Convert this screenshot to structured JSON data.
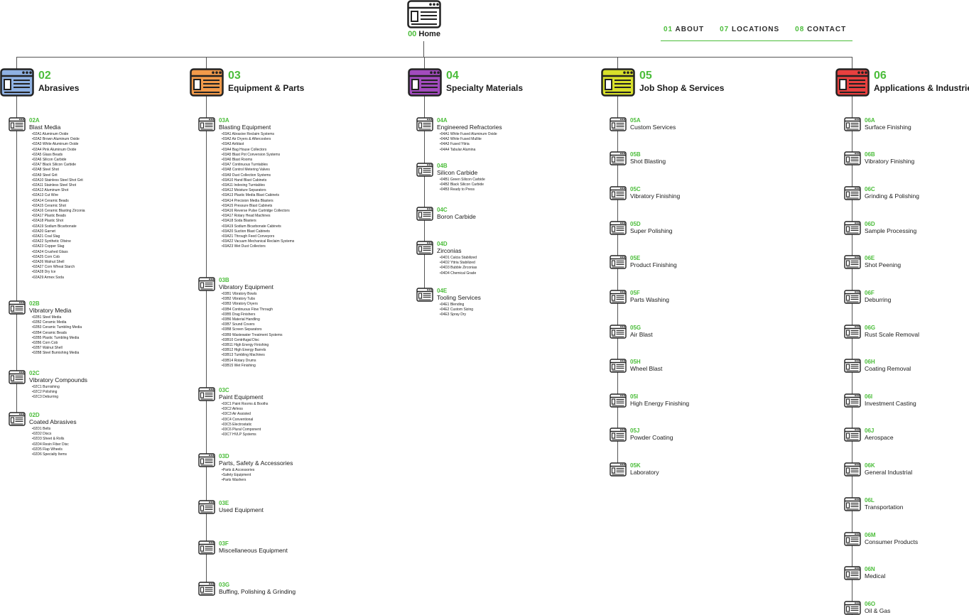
{
  "home": {
    "num": "00",
    "label": "Home"
  },
  "nav": [
    {
      "num": "01",
      "label": "ABOUT"
    },
    {
      "num": "07",
      "label": "LOCATIONS"
    },
    {
      "num": "08",
      "label": "CONTACT"
    }
  ],
  "colors": {
    "accent": "#4bbd3a",
    "abrasives": "#8fb1e3",
    "equipment": "#f29a4a",
    "specialty": "#a24bbd",
    "jobshop": "#d8e02a",
    "applications": "#e8403f"
  },
  "columns": [
    {
      "num": "02",
      "title": "Abrasives",
      "color": "#8fb1e3",
      "nodes": [
        {
          "code": "02A",
          "name": "Blast Media",
          "items": [
            "02A1 Aluminum Oxide",
            "02A2 Brown Aluminum Oxide",
            "02A3 White Aluminum Oxide",
            "02A4 Pink Aluminum Oxide",
            "02A5 Glass Beads",
            "02A6 Silicon Carbide",
            "02A7 Black Silicon Carbide",
            "02A8 Steel Shot",
            "02A9 Steel Grit",
            "02A10 Stainless Steel Shot Grit",
            "02A11 Stainless Steel Shot",
            "02A12 Aluminum Shot",
            "02A13 Cut Wire",
            "02A14 Ceramic Beads",
            "02A15 Ceramic Shot",
            "02A16 Ceramic Blasting Zirconia",
            "02A17 Plastic Beads",
            "02A18 Plastic Shot",
            "02A19 Sodium Bicarbonate",
            "02A20 Garnet",
            "02A21 Coal Slag",
            "02A22 Synthetic Olivine",
            "02A23 Copper Slag",
            "02A24 Crushed Glass",
            "02A25 Corn Cob",
            "02A26 Walnut Shell",
            "02A27 Corn Wheat Starch",
            "02A28 Dry Ice",
            "02A29 Armex Soda"
          ]
        },
        {
          "code": "02B",
          "name": "Vibratory Media",
          "items": [
            "02B1 Steel Media",
            "02B2 Ceramic Media",
            "02B3 Ceramic Tumbling Media",
            "02B4 Ceramic Beads",
            "02B5 Plastic Tumbling Media",
            "02B6 Corn Cob",
            "02B7 Walnut Shell",
            "02B8 Steel Burnishing Media"
          ]
        },
        {
          "code": "02C",
          "name": "Vibratory Compounds",
          "items": [
            "02C1 Burnishing",
            "02C2 Polishing",
            "02C3 Deburring"
          ]
        },
        {
          "code": "02D",
          "name": "Coated Abrasives",
          "items": [
            "02D1 Belts",
            "02D2 Discs",
            "02D3 Sheet & Rolls",
            "02D4 Resin Fiber Disc",
            "02D5 Flap Wheels",
            "02D6 Specialty Items"
          ]
        }
      ]
    },
    {
      "num": "03",
      "title": "Equipment & Parts",
      "color": "#f29a4a",
      "nodes": [
        {
          "code": "03A",
          "name": "Blasting Equipment",
          "items": [
            "03A1 Abrasive Reclaim Systems",
            "03A2 Air Dryers & Aftercoolers",
            "03A3 Airblast",
            "03A4 Bag House Collectors",
            "03A5 Blast Pot Conversion Systems",
            "03A6 Blast Rooms",
            "03A7 Continuous Turntables",
            "03A8 Control Metering Valves",
            "03A9 Dust Collection Systems",
            "03A10 Hand Blast Cabinets",
            "03A11 Indexing Turntables",
            "03A12 Moisture Separators",
            "03A13 Plastic Media Blast Cabinets",
            "03A14 Precision Media Blasters",
            "03A15 Pressure Blast Cabinets",
            "03A16 Reverse Pulse Cartridge Collectors",
            "03A17 Rotary Head Machines",
            "03A18 Soda Blasters",
            "03A19 Sodium Bicarbonate Cabinets",
            "03A20 Suction Blast Cabinets",
            "03A21 Through Feed Conveyors",
            "03A22 Vacuum Mechanical Reclaim Systems",
            "03A23 Wet Dust Collectors"
          ]
        },
        {
          "code": "03B",
          "name": "Vibratory Equipment",
          "items": [
            "03B1 Vibratory Bowls",
            "03B2 Vibratory Tubs",
            "03B3 Vibratory Dryers",
            "03B4 Continuous Flow Through",
            "03B5 Drag Finishers",
            "03B6 Material Handling",
            "03B7 Sound Covers",
            "03B8 Screen Separators",
            "03B9 Wastewater Treatment Systems",
            "03B10 Centrifugal Disc",
            "03B11 High Energy Finishing",
            "03B12 High Energy Barrels",
            "03B13 Tumbling Machines",
            "03B14 Rotary Drums",
            "03B15 Wet Finishing"
          ]
        },
        {
          "code": "03C",
          "name": "Paint Equipment",
          "items": [
            "03C1 Paint Rooms & Booths",
            "03C2 Airless",
            "03C3 Air Assisted",
            "03C4 Conventional",
            "03C5 Electrostatic",
            "03C6 Plural Component",
            "03C7 HVLP Systems"
          ]
        },
        {
          "code": "03D",
          "name": "Parts, Safety & Accessories",
          "items": [
            "Parts & Accessories",
            "Safety Equipment",
            "Parts Washers"
          ]
        },
        {
          "code": "03E",
          "name": "Used Equipment",
          "items": []
        },
        {
          "code": "03F",
          "name": "Miscellaneous Equipment",
          "items": []
        },
        {
          "code": "03G",
          "name": "Buffing, Polishing & Grinding",
          "items": []
        }
      ]
    },
    {
      "num": "04",
      "title": "Specialty Materials",
      "color": "#a24bbd",
      "nodes": [
        {
          "code": "04A",
          "name": "Engineered Refractories",
          "items": [
            "04A1 White Fused Aluminum Oxide",
            "04A2 White Fused Mullite",
            "04A3 Fused Yttria",
            "04A4 Tabular Alumina"
          ]
        },
        {
          "code": "04B",
          "name": "Silicon Carbide",
          "items": [
            "04B1 Green Silicon Carbide",
            "04B2 Black Silicon Carbide",
            "04B3 Ready to Press"
          ]
        },
        {
          "code": "04C",
          "name": "Boron Carbide",
          "items": []
        },
        {
          "code": "04D",
          "name": "Zirconias",
          "items": [
            "04D1 Calcia Stabilized",
            "04D2 Yttria Stabilized",
            "04D3 Bubble Zirconias",
            "04D4 Chemical Grade"
          ]
        },
        {
          "code": "04E",
          "name": "Tooling Services",
          "items": [
            "04E1 Blending",
            "04E2 Custom Sizing",
            "04E3 Spray Dry"
          ]
        }
      ]
    },
    {
      "num": "05",
      "title": "Job Shop & Services",
      "color": "#d8e02a",
      "nodes": [
        {
          "code": "05A",
          "name": "Custom Services",
          "items": []
        },
        {
          "code": "05B",
          "name": "Shot Blasting",
          "items": []
        },
        {
          "code": "05C",
          "name": "Vibratory Finishing",
          "items": []
        },
        {
          "code": "05D",
          "name": "Super Polishing",
          "items": []
        },
        {
          "code": "05E",
          "name": "Product Finishing",
          "items": []
        },
        {
          "code": "05F",
          "name": "Parts Washing",
          "items": []
        },
        {
          "code": "05G",
          "name": "Air Blast",
          "items": []
        },
        {
          "code": "05H",
          "name": "Wheel Blast",
          "items": []
        },
        {
          "code": "05I",
          "name": "High Energy Finishing",
          "items": []
        },
        {
          "code": "05J",
          "name": "Powder Coating",
          "items": []
        },
        {
          "code": "05K",
          "name": "Laboratory",
          "items": []
        }
      ]
    },
    {
      "num": "06",
      "title": "Applications & Industries",
      "color": "#e8403f",
      "nodes": [
        {
          "code": "06A",
          "name": "Surface Finishing",
          "items": []
        },
        {
          "code": "06B",
          "name": "Vibratory Finishing",
          "items": []
        },
        {
          "code": "06C",
          "name": "Grinding & Polishing",
          "items": []
        },
        {
          "code": "06D",
          "name": "Sample Processing",
          "items": []
        },
        {
          "code": "06E",
          "name": "Shot Peening",
          "items": []
        },
        {
          "code": "06F",
          "name": "Deburring",
          "items": []
        },
        {
          "code": "06G",
          "name": "Rust Scale Removal",
          "items": []
        },
        {
          "code": "06H",
          "name": "Coating Removal",
          "items": []
        },
        {
          "code": "06I",
          "name": "Investment Casting",
          "items": []
        },
        {
          "code": "06J",
          "name": "Aerospace",
          "items": []
        },
        {
          "code": "06K",
          "name": "General Industrial",
          "items": []
        },
        {
          "code": "06L",
          "name": "Transportation",
          "items": []
        },
        {
          "code": "06M",
          "name": "Consumer Products",
          "items": []
        },
        {
          "code": "06N",
          "name": "Medical",
          "items": []
        },
        {
          "code": "06O",
          "name": "Oil & Gas",
          "items": []
        }
      ]
    }
  ]
}
